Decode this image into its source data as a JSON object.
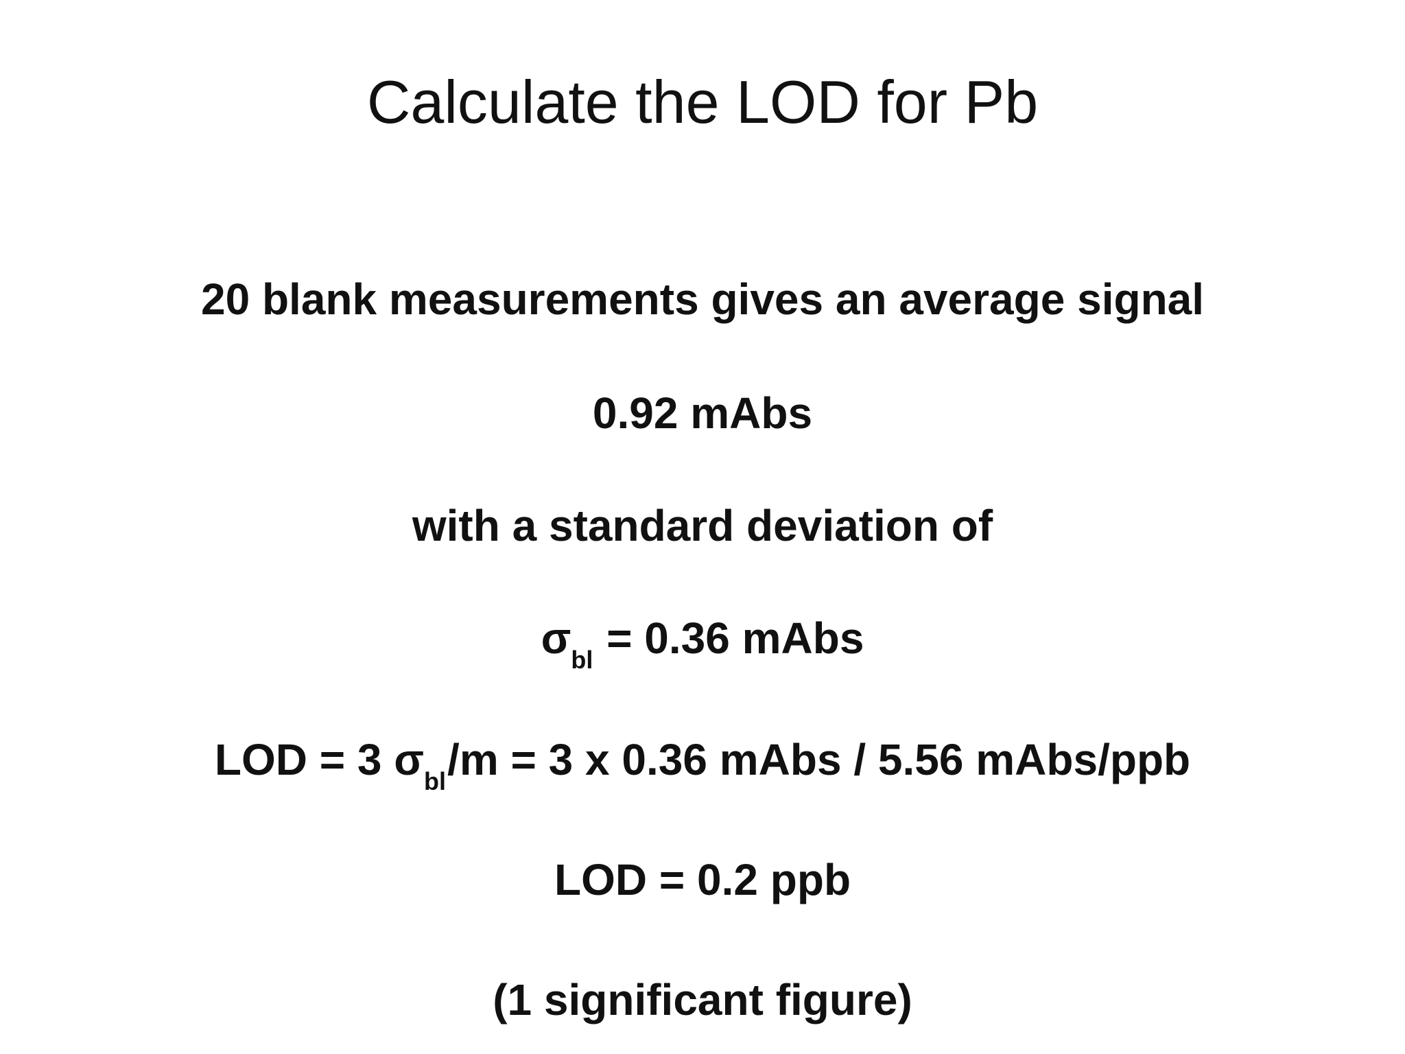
{
  "slide": {
    "title": "Calculate the LOD for Pb",
    "lines": {
      "intro": "20 blank measurements gives an average signal",
      "average": "0.92 mAbs",
      "std_intro": "with a standard deviation of",
      "sigma_symbol": "σ",
      "sigma_subscript": "bl",
      "sigma_value": " = 0.36 mAbs",
      "lod_prefix": "LOD = 3 ",
      "lod_sigma": "σ",
      "lod_subscript": "bl",
      "lod_rest": "/m = 3 x 0.36 mAbs / 5.56 mAbs/ppb",
      "result": "LOD = 0.2 ppb",
      "note": "(1 significant figure)"
    }
  }
}
